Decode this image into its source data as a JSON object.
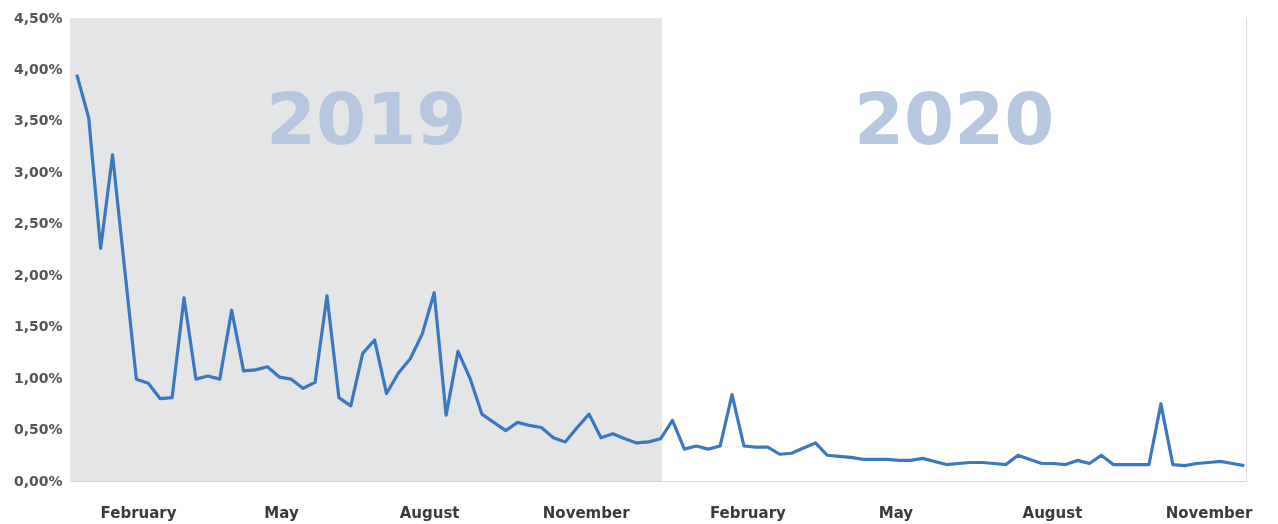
{
  "chart_data": {
    "type": "line",
    "x": [
      "2019-01-06",
      "2019-01-13",
      "2019-01-20",
      "2019-01-27",
      "2019-02-03",
      "2019-02-10",
      "2019-02-17",
      "2019-02-24",
      "2019-03-03",
      "2019-03-10",
      "2019-03-17",
      "2019-03-24",
      "2019-03-31",
      "2019-04-07",
      "2019-04-14",
      "2019-04-21",
      "2019-04-28",
      "2019-05-05",
      "2019-05-12",
      "2019-05-19",
      "2019-05-26",
      "2019-06-02",
      "2019-06-09",
      "2019-06-16",
      "2019-06-23",
      "2019-06-30",
      "2019-07-07",
      "2019-07-14",
      "2019-07-21",
      "2019-07-28",
      "2019-08-04",
      "2019-08-11",
      "2019-08-18",
      "2019-08-25",
      "2019-09-01",
      "2019-09-08",
      "2019-09-15",
      "2019-09-22",
      "2019-09-29",
      "2019-10-06",
      "2019-10-13",
      "2019-10-20",
      "2019-10-27",
      "2019-11-03",
      "2019-11-10",
      "2019-11-17",
      "2019-11-24",
      "2019-12-01",
      "2019-12-08",
      "2019-12-15",
      "2019-12-22",
      "2019-12-29",
      "2020-01-05",
      "2020-01-12",
      "2020-01-19",
      "2020-01-26",
      "2020-02-02",
      "2020-02-09",
      "2020-02-16",
      "2020-02-23",
      "2020-03-01",
      "2020-03-08",
      "2020-03-15",
      "2020-03-22",
      "2020-03-29",
      "2020-04-05",
      "2020-04-12",
      "2020-04-19",
      "2020-04-26",
      "2020-05-03",
      "2020-05-10",
      "2020-05-17",
      "2020-05-24",
      "2020-05-31",
      "2020-06-07",
      "2020-06-14",
      "2020-06-21",
      "2020-06-28",
      "2020-07-05",
      "2020-07-12",
      "2020-07-19",
      "2020-07-26",
      "2020-08-02",
      "2020-08-09",
      "2020-08-16",
      "2020-08-23",
      "2020-08-30",
      "2020-09-06",
      "2020-09-13",
      "2020-09-20",
      "2020-09-27",
      "2020-10-04",
      "2020-10-11",
      "2020-10-18",
      "2020-10-25",
      "2020-11-01",
      "2020-11-08",
      "2020-11-15",
      "2020-11-22"
    ],
    "series": [
      {
        "color": "#3b78c0",
        "values": [
          3.95,
          3.53,
          2.26,
          3.17,
          2.08,
          0.99,
          0.95,
          0.8,
          0.81,
          1.78,
          0.99,
          1.02,
          0.99,
          1.66,
          1.07,
          1.08,
          1.11,
          1.01,
          0.99,
          0.9,
          0.96,
          1.8,
          0.81,
          0.73,
          1.24,
          1.37,
          0.85,
          1.05,
          1.19,
          1.43,
          1.83,
          0.64,
          1.26,
          1.0,
          0.65,
          0.57,
          0.49,
          0.57,
          0.54,
          0.52,
          0.42,
          0.38,
          0.52,
          0.65,
          0.42,
          0.46,
          0.41,
          0.37,
          0.38,
          0.41,
          0.59,
          0.31,
          0.34,
          0.31,
          0.34,
          0.84,
          0.34,
          0.33,
          0.33,
          0.26,
          0.27,
          0.32,
          0.37,
          0.25,
          0.24,
          0.23,
          0.21,
          0.21,
          0.21,
          0.2,
          0.2,
          0.22,
          0.19,
          0.16,
          0.17,
          0.18,
          0.18,
          0.17,
          0.16,
          0.25,
          0.21,
          0.17,
          0.17,
          0.16,
          0.2,
          0.17,
          0.25,
          0.16,
          0.16,
          0.16,
          0.16,
          0.75,
          0.16,
          0.15,
          0.17,
          0.18,
          0.19,
          0.17,
          0.15
        ]
      }
    ],
    "xlim": [
      "2019-01-02",
      "2020-11-23"
    ],
    "xticks": [
      {
        "value": "2019-02-11",
        "label": "February"
      },
      {
        "value": "2019-05-06",
        "label": "May"
      },
      {
        "value": "2019-08-01",
        "label": "August"
      },
      {
        "value": "2019-11-01",
        "label": "November"
      },
      {
        "value": "2020-02-04",
        "label": "February"
      },
      {
        "value": "2020-05-01",
        "label": "May"
      },
      {
        "value": "2020-08-01",
        "label": "August"
      },
      {
        "value": "2020-11-01",
        "label": "November"
      }
    ],
    "ylim": [
      0,
      4.5
    ],
    "yticks": [
      {
        "value": 0,
        "label": "0,00%"
      },
      {
        "value": 0.5,
        "label": "0,50%"
      },
      {
        "value": 1,
        "label": "1,00%"
      },
      {
        "value": 1.5,
        "label": "1,50%"
      },
      {
        "value": 2,
        "label": "2,00%"
      },
      {
        "value": 2.5,
        "label": "2,50%"
      },
      {
        "value": 3,
        "label": "3,00%"
      },
      {
        "value": 3.5,
        "label": "3,50%"
      },
      {
        "value": 4,
        "label": "4,00%"
      },
      {
        "value": 4.5,
        "label": "4,50%"
      }
    ],
    "grid": "y",
    "line_style": "solid",
    "marker": "none",
    "bands": [
      {
        "axis": "x",
        "from": "2019-01-02",
        "to": "2019-12-16",
        "label": "2019",
        "color": "#e4e5e7"
      },
      {
        "axis": "x",
        "from": "2019-12-16",
        "to": "2020-11-23",
        "label": "2020",
        "color": "#ffffff"
      }
    ]
  }
}
